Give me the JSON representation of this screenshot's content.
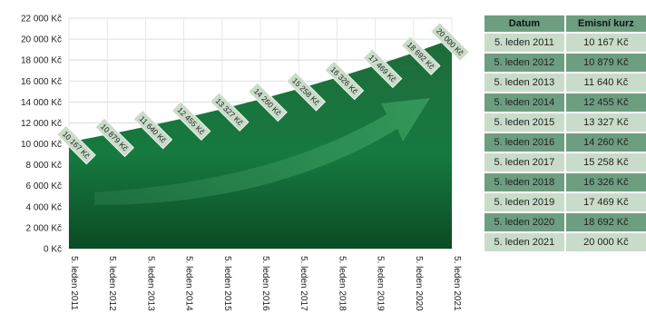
{
  "chart_data": {
    "type": "area",
    "x": [
      "5. leden 2011",
      "5. leden 2012",
      "5. leden 2013",
      "5. leden 2014",
      "5. leden 2015",
      "5. leden 2016",
      "5. leden 2017",
      "5. leden 2018",
      "5. leden 2019",
      "5. leden 2020",
      "5. leden 2021"
    ],
    "values": [
      10167,
      10879,
      11640,
      12455,
      13327,
      14260,
      15258,
      16326,
      17469,
      18692,
      20000
    ],
    "data_labels": [
      "10 167 Kč",
      "10 879 Kč",
      "11 640 Kč",
      "12 455 Kč",
      "13 327 Kč",
      "14 260 Kč",
      "15 258 Kč",
      "16 326 Kč",
      "17 469 Kč",
      "18 692 Kč",
      "20 000 Kč"
    ],
    "y_ticks": [
      "0 Kč",
      "2 000 Kč",
      "4 000 Kč",
      "6 000 Kč",
      "8 000 Kč",
      "10 000 Kč",
      "12 000 Kč",
      "14 000 Kč",
      "16 000 Kč",
      "18 000 Kč",
      "20 000 Kč",
      "22 000 Kč"
    ],
    "ylim": [
      0,
      22000
    ],
    "grid": true,
    "colors": {
      "area_top": "#1f6b3a",
      "area_bottom": "#0b4a25",
      "label_bg": "#c9dcc9",
      "arrow": "#2f8a55"
    }
  },
  "table": {
    "headers": [
      "Datum",
      "Emisní kurz"
    ],
    "rows": [
      [
        "5. leden 2011",
        "10 167 Kč"
      ],
      [
        "5. leden 2012",
        "10 879 Kč"
      ],
      [
        "5. leden 2013",
        "11 640 Kč"
      ],
      [
        "5. leden 2014",
        "12 455 Kč"
      ],
      [
        "5. leden 2015",
        "13 327 Kč"
      ],
      [
        "5. leden 2016",
        "14 260 Kč"
      ],
      [
        "5. leden 2017",
        "15 258 Kč"
      ],
      [
        "5. leden 2018",
        "16 326 Kč"
      ],
      [
        "5. leden 2019",
        "17 469 Kč"
      ],
      [
        "5. leden 2020",
        "18 692 Kč"
      ],
      [
        "5. leden 2021",
        "20 000 Kč"
      ]
    ]
  }
}
